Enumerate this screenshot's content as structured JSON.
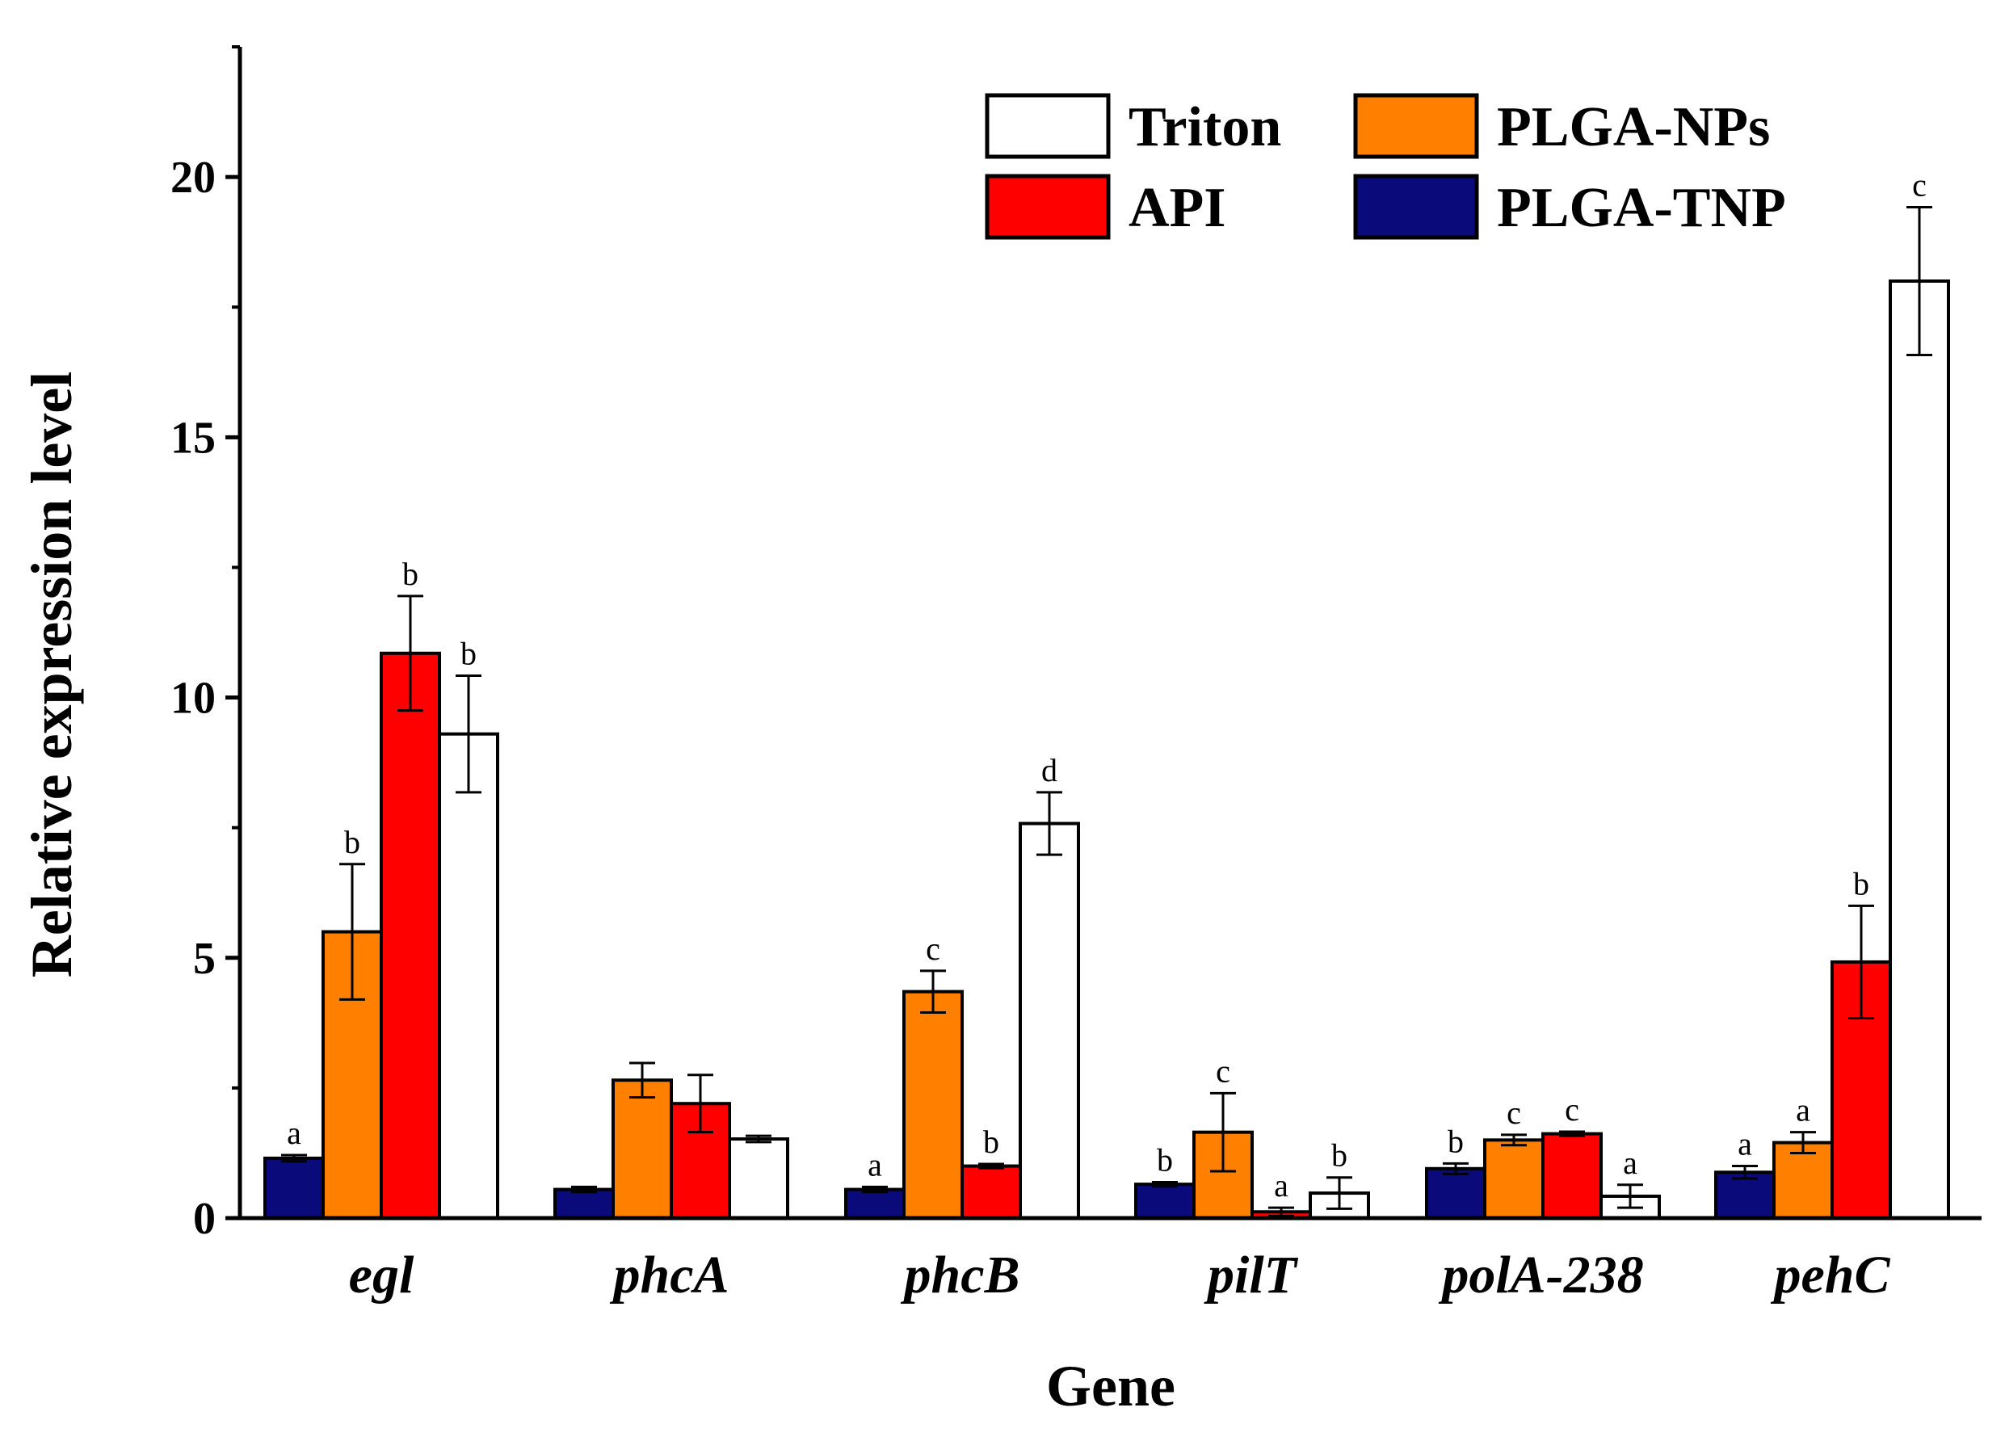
{
  "chart_data": {
    "type": "bar",
    "xlabel": "Gene",
    "ylabel": "Relative expression level",
    "ylim": [
      0,
      22.5
    ],
    "yticks": [
      0,
      5,
      10,
      15,
      20
    ],
    "categories": [
      "egl",
      "phcA",
      "phcB",
      "pilT",
      "polA-238",
      "pehC"
    ],
    "series": [
      {
        "name": "PLGA-TNP",
        "color": "#0a0a7a",
        "values": [
          1.15,
          0.55,
          0.55,
          0.65,
          0.95,
          0.88
        ],
        "errors": [
          0.06,
          0.05,
          0.05,
          0.04,
          0.1,
          0.12
        ],
        "labels": [
          "a",
          "",
          "a",
          "b",
          "b",
          "a"
        ]
      },
      {
        "name": "PLGA-NPs",
        "color": "#ff8000",
        "values": [
          5.5,
          2.65,
          4.35,
          1.65,
          1.5,
          1.45
        ],
        "errors": [
          1.3,
          0.33,
          0.4,
          0.75,
          0.1,
          0.2
        ],
        "labels": [
          "b",
          "",
          "c",
          "c",
          "c",
          "a"
        ]
      },
      {
        "name": "API",
        "color": "#ff0000",
        "values": [
          10.85,
          2.2,
          1.0,
          0.12,
          1.62,
          4.92
        ],
        "errors": [
          1.1,
          0.55,
          0.04,
          0.08,
          0.04,
          1.08
        ],
        "labels": [
          "b",
          "",
          "b",
          "a",
          "c",
          "b"
        ]
      },
      {
        "name": "Triton",
        "color": "#ffffff",
        "values": [
          9.3,
          1.52,
          7.58,
          0.48,
          0.42,
          18.0
        ],
        "errors": [
          1.12,
          0.06,
          0.6,
          0.3,
          0.22,
          1.42
        ],
        "labels": [
          "b",
          "",
          "d",
          "b",
          "a",
          "c"
        ]
      }
    ],
    "legend": {
      "placement": "top-right",
      "entries": [
        "Triton",
        "PLGA-NPs",
        "API",
        "PLGA-TNP"
      ]
    },
    "grid": false
  }
}
